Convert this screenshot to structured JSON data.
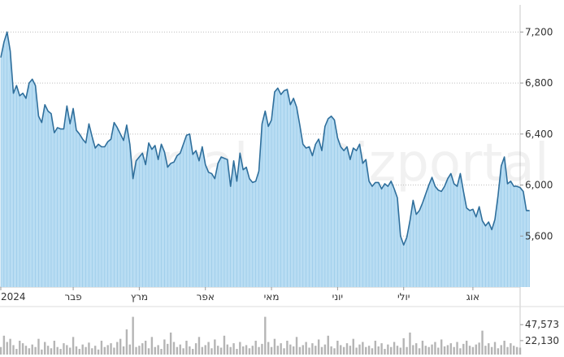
{
  "chart_data": [
    {
      "type": "area",
      "watermark": [
        "Bizportal",
        "Bizportal"
      ],
      "y_ticks": [
        {
          "label": "7,200",
          "value": 7200
        },
        {
          "label": "6,800",
          "value": 6800
        },
        {
          "label": "6,400",
          "value": 6400
        },
        {
          "label": "6,000",
          "value": 6000
        },
        {
          "label": "5,600",
          "value": 5600
        }
      ],
      "ylim": [
        5200,
        7400
      ],
      "x_ticks": [
        {
          "label": "2024",
          "value": 0
        },
        {
          "label": "פבר",
          "value": 23
        },
        {
          "label": "מרץ",
          "value": 44
        },
        {
          "label": "אפר",
          "value": 65
        },
        {
          "label": "מאי",
          "value": 86
        },
        {
          "label": "יוני",
          "value": 107
        },
        {
          "label": "יולי",
          "value": 128
        },
        {
          "label": "אוג",
          "value": 150
        }
      ],
      "xlim": [
        0,
        165
      ],
      "grid": true,
      "values": [
        7000,
        7120,
        7200,
        7050,
        6720,
        6780,
        6700,
        6720,
        6680,
        6800,
        6830,
        6780,
        6540,
        6490,
        6630,
        6580,
        6560,
        6410,
        6450,
        6440,
        6440,
        6620,
        6480,
        6600,
        6430,
        6400,
        6360,
        6330,
        6480,
        6380,
        6290,
        6320,
        6300,
        6300,
        6340,
        6360,
        6490,
        6450,
        6400,
        6350,
        6470,
        6320,
        6050,
        6190,
        6220,
        6250,
        6160,
        6330,
        6280,
        6310,
        6200,
        6320,
        6260,
        6140,
        6170,
        6180,
        6230,
        6250,
        6320,
        6390,
        6400,
        6240,
        6270,
        6190,
        6300,
        6160,
        6100,
        6090,
        6050,
        6170,
        6220,
        6210,
        6200,
        5990,
        6190,
        6030,
        6250,
        6120,
        6140,
        6050,
        6020,
        6030,
        6110,
        6480,
        6580,
        6460,
        6510,
        6730,
        6760,
        6710,
        6740,
        6750,
        6630,
        6680,
        6610,
        6470,
        6320,
        6290,
        6300,
        6230,
        6320,
        6360,
        6270,
        6460,
        6520,
        6540,
        6510,
        6370,
        6300,
        6270,
        6300,
        6200,
        6290,
        6270,
        6320,
        6170,
        6200,
        6030,
        5990,
        6020,
        6020,
        5970,
        6010,
        5990,
        6030,
        5970,
        5900,
        5600,
        5530,
        5590,
        5720,
        5880,
        5770,
        5800,
        5860,
        5930,
        6000,
        6060,
        5990,
        5960,
        5950,
        5990,
        6050,
        6090,
        6010,
        5990,
        6090,
        5950,
        5820,
        5800,
        5810,
        5750,
        5830,
        5720,
        5680,
        5710,
        5650,
        5730,
        5920,
        6150,
        6220,
        6010,
        6030,
        5990,
        5990,
        5980,
        5950,
        5800,
        5800
      ]
    },
    {
      "type": "bar",
      "y_ticks": [
        {
          "label": "47,573",
          "value": 47573
        },
        {
          "label": "22,130",
          "value": 22130
        }
      ],
      "ylim": [
        0,
        75000
      ],
      "values": [
        12000,
        30000,
        20000,
        25000,
        15000,
        9000,
        22000,
        18000,
        14000,
        10000,
        16000,
        12000,
        25000,
        8000,
        20000,
        14000,
        10000,
        22000,
        12000,
        9000,
        18000,
        15000,
        11000,
        28000,
        13000,
        9000,
        16000,
        12000,
        19000,
        10000,
        14000,
        8000,
        22000,
        12000,
        15000,
        18000,
        11000,
        20000,
        25000,
        13000,
        40000,
        16000,
        60000,
        12000,
        14000,
        18000,
        22000,
        10000,
        28000,
        12000,
        15000,
        9000,
        24000,
        17000,
        35000,
        20000,
        12000,
        16000,
        10000,
        22000,
        13000,
        9000,
        18000,
        28000,
        12000,
        15000,
        20000,
        10000,
        24000,
        14000,
        11000,
        30000,
        16000,
        12000,
        18000,
        9000,
        20000,
        13000,
        15000,
        10000,
        14000,
        22000,
        12000,
        17000,
        60000,
        20000,
        12000,
        25000,
        14000,
        18000,
        10000,
        22000,
        16000,
        13000,
        28000,
        12000,
        15000,
        20000,
        11000,
        18000,
        14000,
        24000,
        12000,
        16000,
        30000,
        13000,
        10000,
        22000,
        15000,
        12000,
        18000,
        14000,
        25000,
        11000,
        16000,
        20000,
        12000,
        14000,
        10000,
        22000,
        13000,
        18000,
        9000,
        16000,
        12000,
        20000,
        14000,
        11000,
        26000,
        12000,
        35000,
        15000,
        18000,
        10000,
        22000,
        14000,
        12000,
        16000,
        20000,
        11000,
        24000,
        13000,
        15000,
        18000,
        12000,
        20000,
        10000,
        17000,
        22000,
        14000,
        12000,
        16000,
        19000,
        38000,
        14000,
        18000,
        12000,
        20000,
        10000,
        15000,
        22000,
        12000,
        18000,
        14000,
        12000,
        11000
      ]
    }
  ]
}
